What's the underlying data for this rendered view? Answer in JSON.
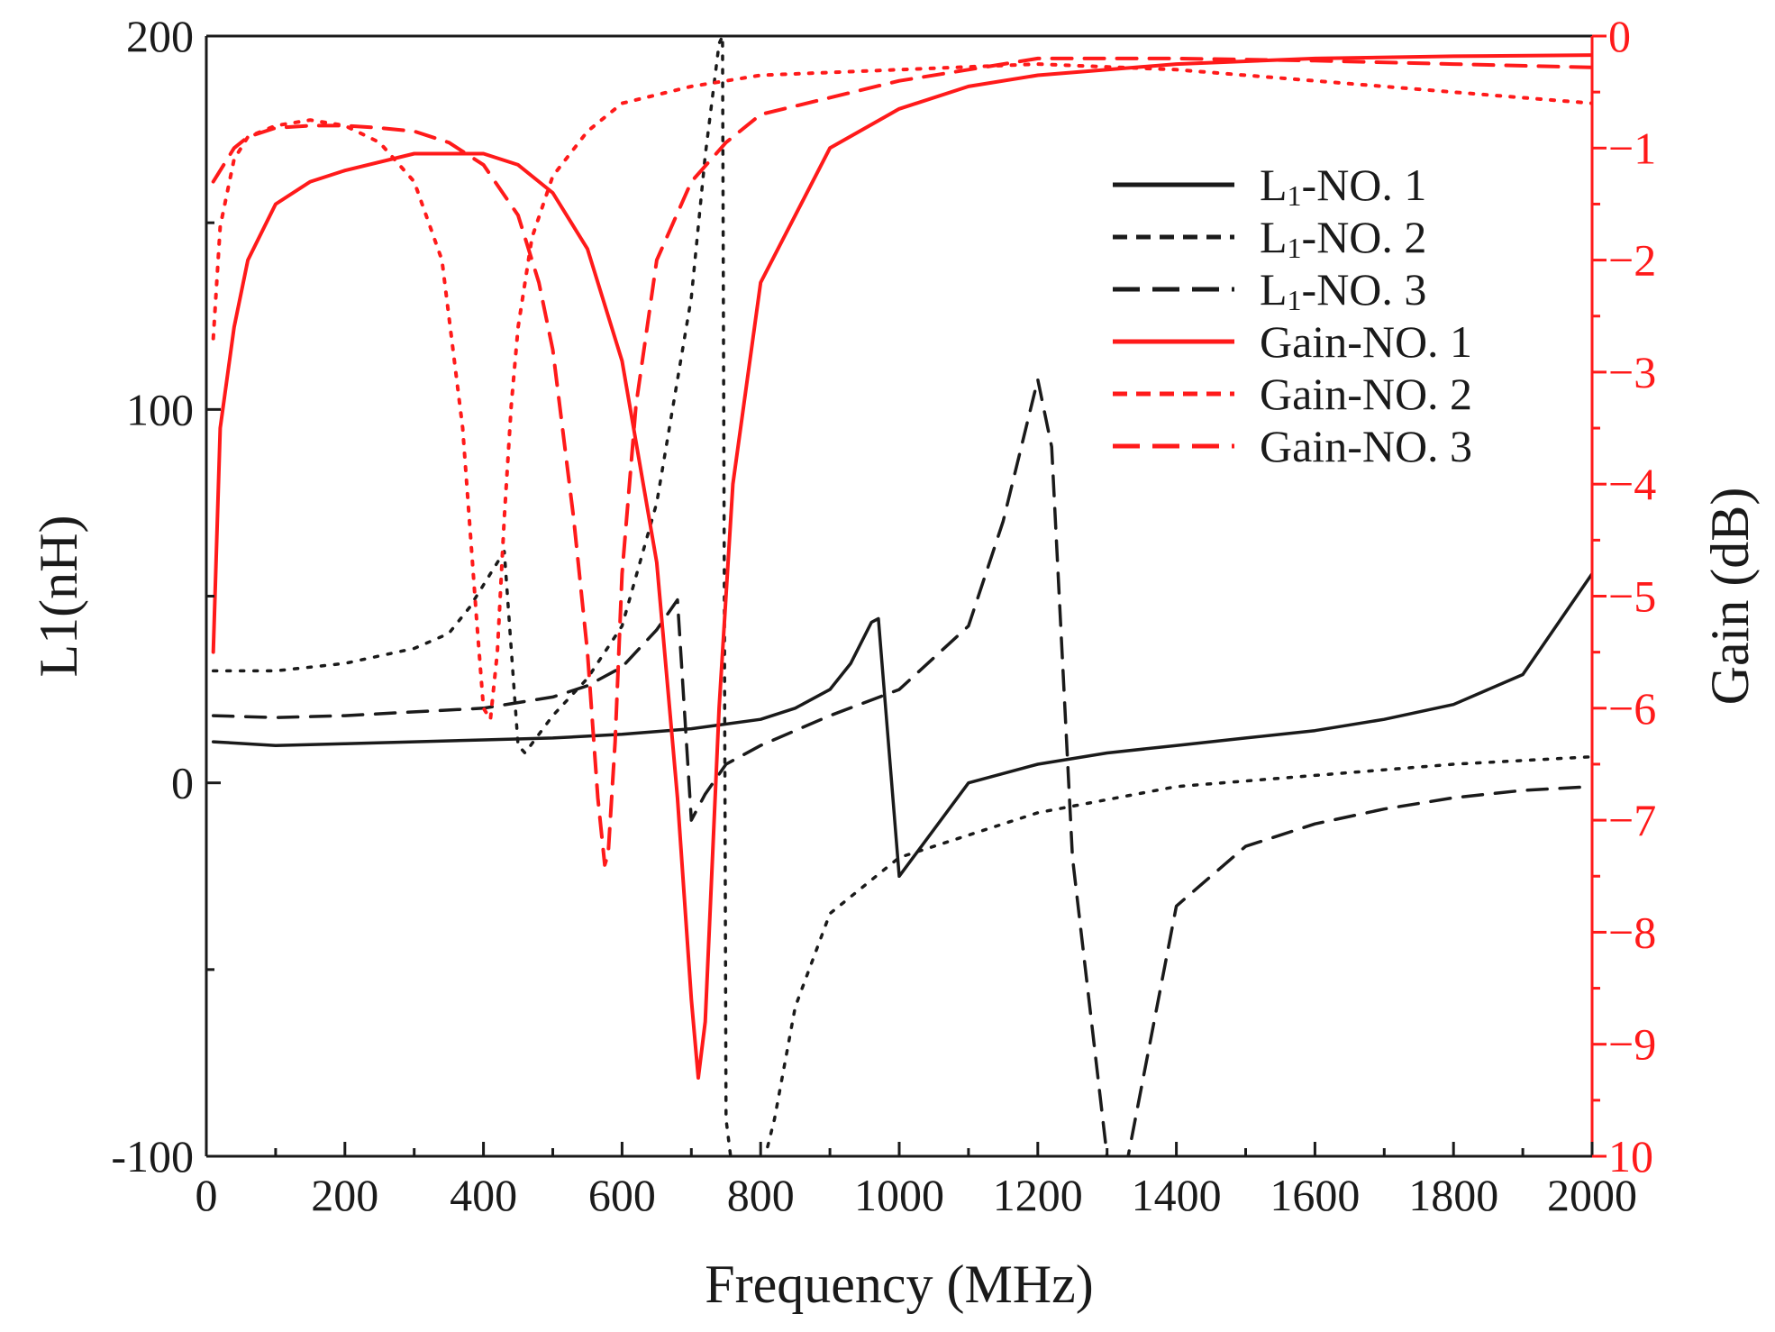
{
  "chart_data": {
    "type": "line",
    "title": "",
    "xlabel": "Frequency (MHz)",
    "ylabel_left": "L1(nH)",
    "ylabel_right": "Gain (dB)",
    "xlim": [
      0,
      2000
    ],
    "ylim_left": [
      -100,
      200
    ],
    "ylim_right": [
      -10,
      0
    ],
    "x_ticks": [
      "0",
      "200",
      "400",
      "600",
      "800",
      "1000",
      "1200",
      "1400",
      "1600",
      "1800",
      "2000"
    ],
    "y_left_ticks": [
      "-100",
      "0",
      "100",
      "200"
    ],
    "y_right_ticks": [
      "0",
      "−1",
      "−2",
      "−3",
      "−4",
      "−5",
      "−6",
      "−7",
      "−8",
      "−9",
      "10"
    ],
    "grid": false,
    "legend_position": "top-right",
    "colors": {
      "black": "#1a1a1a",
      "red": "#ff1a1a"
    },
    "series": [
      {
        "name": "L1-NO. 1",
        "legend_label": "L1-NO. 1",
        "subscript": "1",
        "prefix": "L",
        "suffix": "-NO. 1",
        "axis": "left",
        "color": "#1a1a1a",
        "style": "solid",
        "x": [
          10,
          100,
          200,
          300,
          400,
          500,
          600,
          700,
          800,
          850,
          900,
          930,
          960,
          970,
          1000,
          1100,
          1200,
          1300,
          1400,
          1500,
          1600,
          1700,
          1800,
          1900,
          2000
        ],
        "y": [
          11,
          10,
          10.5,
          11,
          11.5,
          12,
          13,
          14.5,
          17,
          20,
          25,
          32,
          43,
          44,
          -25,
          0,
          5,
          8,
          10,
          12,
          14,
          17,
          21,
          29,
          56
        ]
      },
      {
        "name": "L1-NO. 2",
        "legend_label": "L1-NO. 2",
        "subscript": "1",
        "prefix": "L",
        "suffix": "-NO. 2",
        "axis": "left",
        "color": "#1a1a1a",
        "style": "dotted",
        "x": [
          10,
          100,
          200,
          300,
          350,
          380,
          410,
          430,
          450,
          460,
          500,
          550,
          600,
          650,
          700,
          720,
          740,
          745,
          750,
          760,
          800,
          820,
          850,
          900,
          1000,
          1200,
          1400,
          1600,
          1800,
          2000
        ],
        "y": [
          30,
          30,
          32,
          36,
          40,
          47,
          56,
          62,
          10,
          8,
          18,
          28,
          42,
          75,
          130,
          168,
          198,
          200,
          -90,
          -105,
          -105,
          -90,
          -60,
          -35,
          -20,
          -8,
          -1,
          2,
          5,
          7
        ]
      },
      {
        "name": "L1-NO. 3",
        "legend_label": "L1-NO. 3",
        "subscript": "1",
        "prefix": "L",
        "suffix": "-NO. 3",
        "axis": "left",
        "color": "#1a1a1a",
        "style": "dashed",
        "x": [
          10,
          100,
          200,
          300,
          400,
          500,
          550,
          600,
          650,
          680,
          700,
          720,
          750,
          800,
          900,
          1000,
          1100,
          1150,
          1200,
          1220,
          1250,
          1300,
          1320,
          1400,
          1500,
          1600,
          1700,
          1800,
          1900,
          2000
        ],
        "y": [
          18,
          17.5,
          18,
          19,
          20,
          23,
          26,
          31,
          41,
          49,
          -10,
          -3,
          5,
          10,
          18,
          25,
          42,
          70,
          108,
          90,
          -20,
          -100,
          -110,
          -33,
          -17,
          -11,
          -7,
          -4,
          -2,
          -1
        ]
      },
      {
        "name": "Gain-NO. 1",
        "legend_label": "Gain-NO. 1",
        "axis": "right",
        "color": "#ff1a1a",
        "style": "solid",
        "x": [
          10,
          20,
          40,
          60,
          100,
          150,
          200,
          300,
          400,
          450,
          500,
          550,
          600,
          650,
          680,
          700,
          710,
          720,
          740,
          760,
          800,
          900,
          1000,
          1100,
          1200,
          1400,
          1600,
          1800,
          2000
        ],
        "y": [
          -5.5,
          -3.5,
          -2.6,
          -2.0,
          -1.5,
          -1.3,
          -1.2,
          -1.05,
          -1.05,
          -1.15,
          -1.4,
          -1.9,
          -2.9,
          -4.7,
          -6.8,
          -8.6,
          -9.3,
          -8.8,
          -6.0,
          -4.0,
          -2.2,
          -1.0,
          -0.65,
          -0.45,
          -0.35,
          -0.25,
          -0.2,
          -0.18,
          -0.17
        ]
      },
      {
        "name": "Gain-NO. 2",
        "legend_label": "Gain-NO. 2",
        "axis": "right",
        "color": "#ff1a1a",
        "style": "dotted",
        "x": [
          10,
          20,
          40,
          60,
          100,
          150,
          200,
          250,
          300,
          340,
          370,
          390,
          400,
          410,
          420,
          430,
          440,
          450,
          470,
          500,
          550,
          600,
          700,
          800,
          1000,
          1200,
          1400,
          1600,
          1800,
          2000
        ],
        "y": [
          -2.7,
          -1.7,
          -1.1,
          -0.9,
          -0.8,
          -0.75,
          -0.8,
          -0.95,
          -1.3,
          -2.0,
          -3.5,
          -5.2,
          -6.0,
          -6.1,
          -5.5,
          -4.3,
          -3.3,
          -2.6,
          -1.8,
          -1.25,
          -0.85,
          -0.6,
          -0.45,
          -0.35,
          -0.3,
          -0.25,
          -0.3,
          -0.4,
          -0.5,
          -0.6
        ]
      },
      {
        "name": "Gain-NO. 3",
        "legend_label": "Gain-NO. 3",
        "axis": "right",
        "color": "#ff1a1a",
        "style": "dashed",
        "x": [
          10,
          20,
          40,
          60,
          100,
          150,
          200,
          250,
          300,
          350,
          400,
          450,
          480,
          500,
          530,
          550,
          565,
          575,
          580,
          590,
          600,
          620,
          650,
          700,
          750,
          800,
          1000,
          1200,
          1400,
          1600,
          1800,
          2000
        ],
        "y": [
          -1.3,
          -1.2,
          -1.0,
          -0.9,
          -0.82,
          -0.8,
          -0.8,
          -0.82,
          -0.85,
          -0.95,
          -1.15,
          -1.6,
          -2.2,
          -2.8,
          -4.3,
          -5.5,
          -6.8,
          -7.4,
          -7.3,
          -6.3,
          -4.8,
          -3.3,
          -2.0,
          -1.3,
          -0.95,
          -0.7,
          -0.4,
          -0.2,
          -0.2,
          -0.22,
          -0.25,
          -0.28
        ]
      }
    ]
  }
}
